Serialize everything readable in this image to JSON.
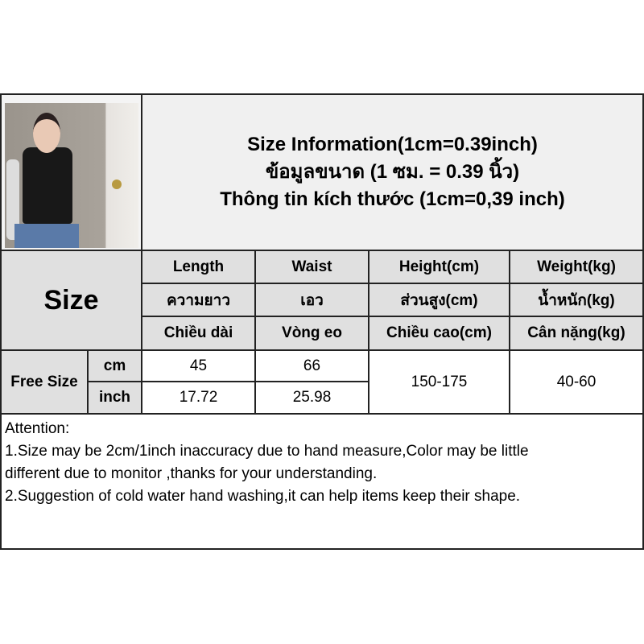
{
  "photo": {
    "icon": "model-photo"
  },
  "header": {
    "lines": [
      "Size Information(1cm=0.39inch)",
      "ข้อมูลขนาด (1 ซม. = 0.39 นิ้ว)",
      "Thông tin kích thước (1cm=0,39 inch)"
    ]
  },
  "table": {
    "size_label": "Size",
    "columns": [
      {
        "en": "Length",
        "th": "ความยาว",
        "vi": "Chiều dài"
      },
      {
        "en": "Waist",
        "th": "เอว",
        "vi": "Vòng eo"
      },
      {
        "en": "Height(cm)",
        "th": "ส่วนสูง(cm)",
        "vi": "Chiều cao(cm)"
      },
      {
        "en": "Weight(kg)",
        "th": "น้ำหนัก(kg)",
        "vi": "Cân nặng(kg)"
      }
    ],
    "row_label": "Free Size",
    "units": [
      "cm",
      "inch"
    ],
    "cm": [
      "45",
      "66"
    ],
    "inch": [
      "17.72",
      "25.98"
    ],
    "height": "150-175",
    "weight": "40-60"
  },
  "attention": [
    "Attention:",
    "1.Size may be 2cm/1inch inaccuracy due to hand measure,Color may be little",
    "different due to monitor ,thanks for your understanding.",
    "2.Suggestion of cold water hand washing,it can help items keep their shape."
  ]
}
